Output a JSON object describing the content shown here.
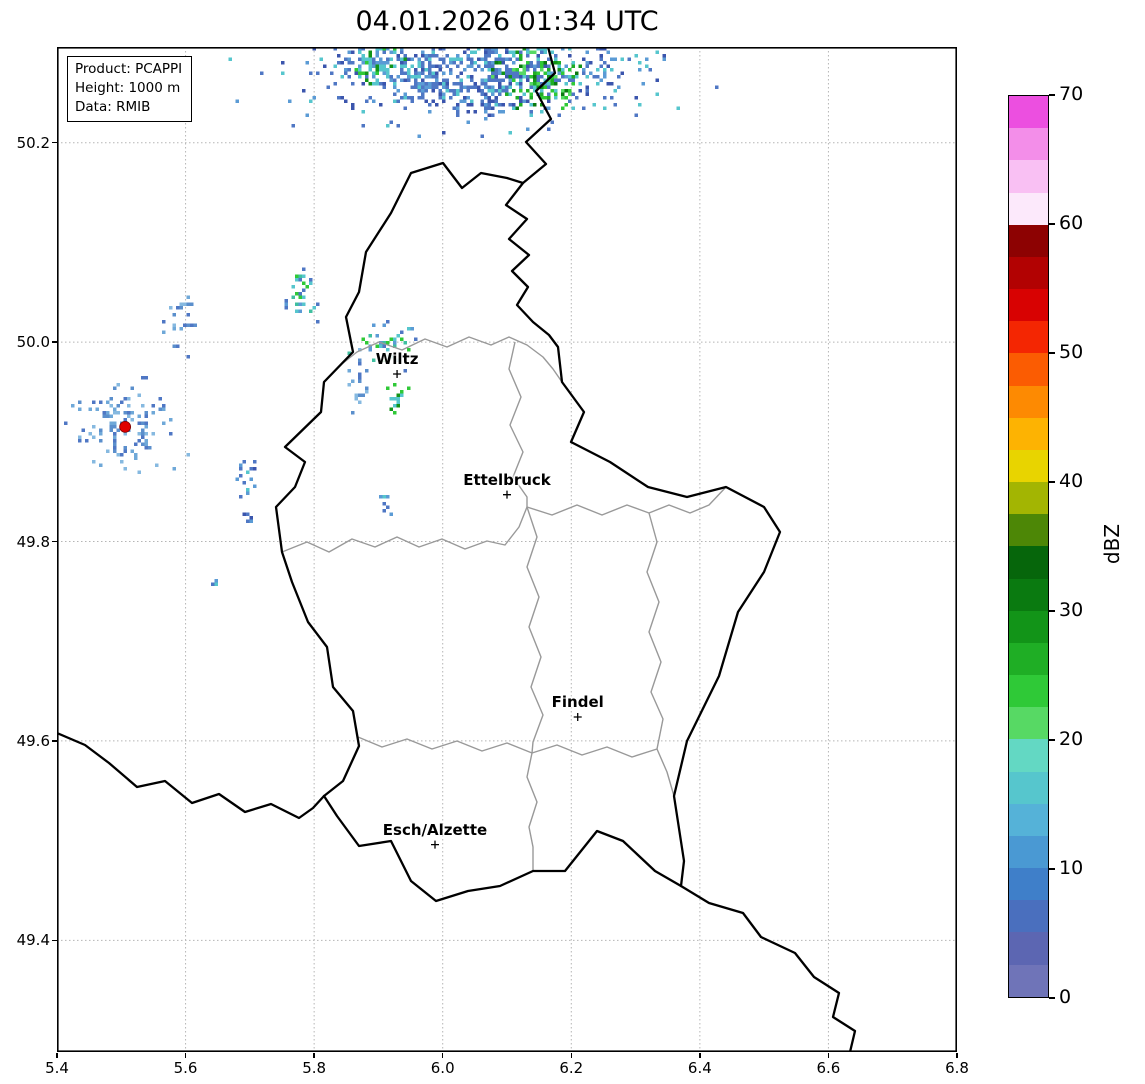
{
  "title": "04.01.2026 01:34 UTC",
  "info_box": {
    "lines": [
      "Product: PCAPPI",
      "Height: 1000 m",
      "Data: RMIB"
    ]
  },
  "axes": {
    "x_min": 5.4,
    "x_max": 6.8,
    "y_min": 49.288,
    "y_max": 50.296,
    "x_ticks": [
      {
        "v": 5.4,
        "label": "5.4"
      },
      {
        "v": 5.6,
        "label": "5.6"
      },
      {
        "v": 5.8,
        "label": "5.8"
      },
      {
        "v": 6.0,
        "label": "6.0"
      },
      {
        "v": 6.2,
        "label": "6.2"
      },
      {
        "v": 6.4,
        "label": "6.4"
      },
      {
        "v": 6.6,
        "label": "6.6"
      },
      {
        "v": 6.8,
        "label": "6.8"
      }
    ],
    "y_ticks": [
      {
        "v": 50.2,
        "label": "50.2"
      },
      {
        "v": 50.0,
        "label": "50.0"
      },
      {
        "v": 49.8,
        "label": "49.8"
      },
      {
        "v": 49.6,
        "label": "49.6"
      },
      {
        "v": 49.4,
        "label": "49.4"
      }
    ]
  },
  "colorbar": {
    "label": "dBZ",
    "min": 0,
    "max": 70,
    "ticks": [
      {
        "v": 70,
        "label": "70"
      },
      {
        "v": 60,
        "label": "60"
      },
      {
        "v": 50,
        "label": "50"
      },
      {
        "v": 40,
        "label": "40"
      },
      {
        "v": 30,
        "label": "30"
      },
      {
        "v": 20,
        "label": "20"
      },
      {
        "v": 10,
        "label": "10"
      },
      {
        "v": 0,
        "label": "0"
      }
    ],
    "segments_top_to_bottom": [
      "#ec4fe0",
      "#f38ee9",
      "#f9c0f3",
      "#fce9fb",
      "#8d0202",
      "#b20202",
      "#d80202",
      "#f42602",
      "#fb5c02",
      "#fd8a02",
      "#fdb302",
      "#e8d400",
      "#a3b502",
      "#4d8706",
      "#06660b",
      "#0a7a10",
      "#129418",
      "#1fae25",
      "#2fc937",
      "#57d964",
      "#63d8c3",
      "#56c6cd",
      "#55b2d8",
      "#4a99d3",
      "#3f7fc9",
      "#4a6fbe",
      "#5c66b2",
      "#6f74b8"
    ]
  },
  "chart_data": {
    "type": "heatmap",
    "title": "04.01.2026 01:34 UTC",
    "product": "PCAPPI",
    "height_m": 1000,
    "data_source": "RMIB",
    "x_axis": {
      "range": [
        5.4,
        6.8
      ],
      "ticks": [
        5.4,
        5.6,
        5.8,
        6.0,
        6.2,
        6.4,
        6.6,
        6.8
      ],
      "unit": "degrees longitude"
    },
    "y_axis": {
      "range": [
        49.288,
        50.296
      ],
      "ticks": [
        49.4,
        49.6,
        49.8,
        50.0,
        50.2
      ],
      "unit": "degrees latitude"
    },
    "colorbar": {
      "label": "dBZ",
      "range": [
        0,
        70
      ],
      "ticks": [
        0,
        10,
        20,
        30,
        40,
        50,
        60,
        70
      ]
    },
    "cities": [
      {
        "name": "Wiltz",
        "lon": 5.929,
        "lat": 49.968
      },
      {
        "name": "Ettelbruck",
        "lon": 6.1,
        "lat": 49.847
      },
      {
        "name": "Findel",
        "lon": 6.21,
        "lat": 49.624
      },
      {
        "name": "Esch/Alzette",
        "lon": 5.988,
        "lat": 49.496
      }
    ],
    "radar_site": {
      "lon": 5.506,
      "lat": 49.915,
      "color": "#e00000"
    },
    "echo_palettes": {
      "blue": [
        "#4f77c4",
        "#4f77c4",
        "#3b55ad",
        "#5b9bd5",
        "#56c6cd"
      ],
      "lblue": [
        "#5b8fcc",
        "#6fa8d8",
        "#4f77c4",
        "#86b9e0"
      ],
      "cyan": [
        "#56c6cd",
        "#5b9bd5",
        "#4f77c4",
        "#3fbf9f",
        "#2fc937"
      ],
      "green": [
        "#2fc937",
        "#1fae25",
        "#129418",
        "#0a7a10",
        "#56c6cd",
        "#57d964",
        "#4f77c4"
      ],
      "green2": [
        "#2fc937",
        "#56c6cd",
        "#5b9bd5",
        "#129418"
      ]
    },
    "echo_blobs": [
      {
        "lon": 6.053,
        "lat": 50.278,
        "dlon": 0.233,
        "dlat": 0.042,
        "n": 700,
        "palette": "blue"
      },
      {
        "lon": 6.144,
        "lat": 50.268,
        "dlon": 0.053,
        "dlat": 0.026,
        "n": 160,
        "palette": "green"
      },
      {
        "lon": 6.069,
        "lat": 50.251,
        "dlon": 0.039,
        "dlat": 0.018,
        "n": 60,
        "palette": "blue"
      },
      {
        "lon": 5.892,
        "lat": 50.284,
        "dlon": 0.034,
        "dlat": 0.016,
        "n": 70,
        "palette": "green2"
      },
      {
        "lon": 5.972,
        "lat": 50.266,
        "dlon": 0.04,
        "dlat": 0.02,
        "n": 60,
        "palette": "blue"
      },
      {
        "lon": 5.594,
        "lat": 50.023,
        "dlon": 0.025,
        "dlat": 0.026,
        "n": 26,
        "palette": "lblue"
      },
      {
        "lon": 5.778,
        "lat": 50.053,
        "dlon": 0.02,
        "dlat": 0.024,
        "n": 34,
        "palette": "cyan"
      },
      {
        "lon": 5.913,
        "lat": 49.997,
        "dlon": 0.04,
        "dlat": 0.02,
        "n": 40,
        "palette": "cyan"
      },
      {
        "lon": 5.867,
        "lat": 49.965,
        "dlon": 0.028,
        "dlat": 0.022,
        "n": 20,
        "palette": "lblue"
      },
      {
        "lon": 5.923,
        "lat": 49.945,
        "dlon": 0.016,
        "dlat": 0.014,
        "n": 16,
        "palette": "green2"
      },
      {
        "lon": 5.506,
        "lat": 49.915,
        "dlon": 0.062,
        "dlat": 0.036,
        "n": 120,
        "palette": "lblue"
      },
      {
        "lon": 5.696,
        "lat": 49.867,
        "dlon": 0.014,
        "dlat": 0.02,
        "n": 16,
        "palette": "blue"
      },
      {
        "lon": 5.91,
        "lat": 49.84,
        "dlon": 0.009,
        "dlat": 0.01,
        "n": 7,
        "palette": "blue"
      },
      {
        "lon": 5.646,
        "lat": 49.761,
        "dlon": 0.008,
        "dlat": 0.005,
        "n": 3,
        "palette": "blue"
      },
      {
        "lon": 5.696,
        "lat": 49.825,
        "dlon": 0.008,
        "dlat": 0.007,
        "n": 5,
        "palette": "blue"
      }
    ]
  }
}
